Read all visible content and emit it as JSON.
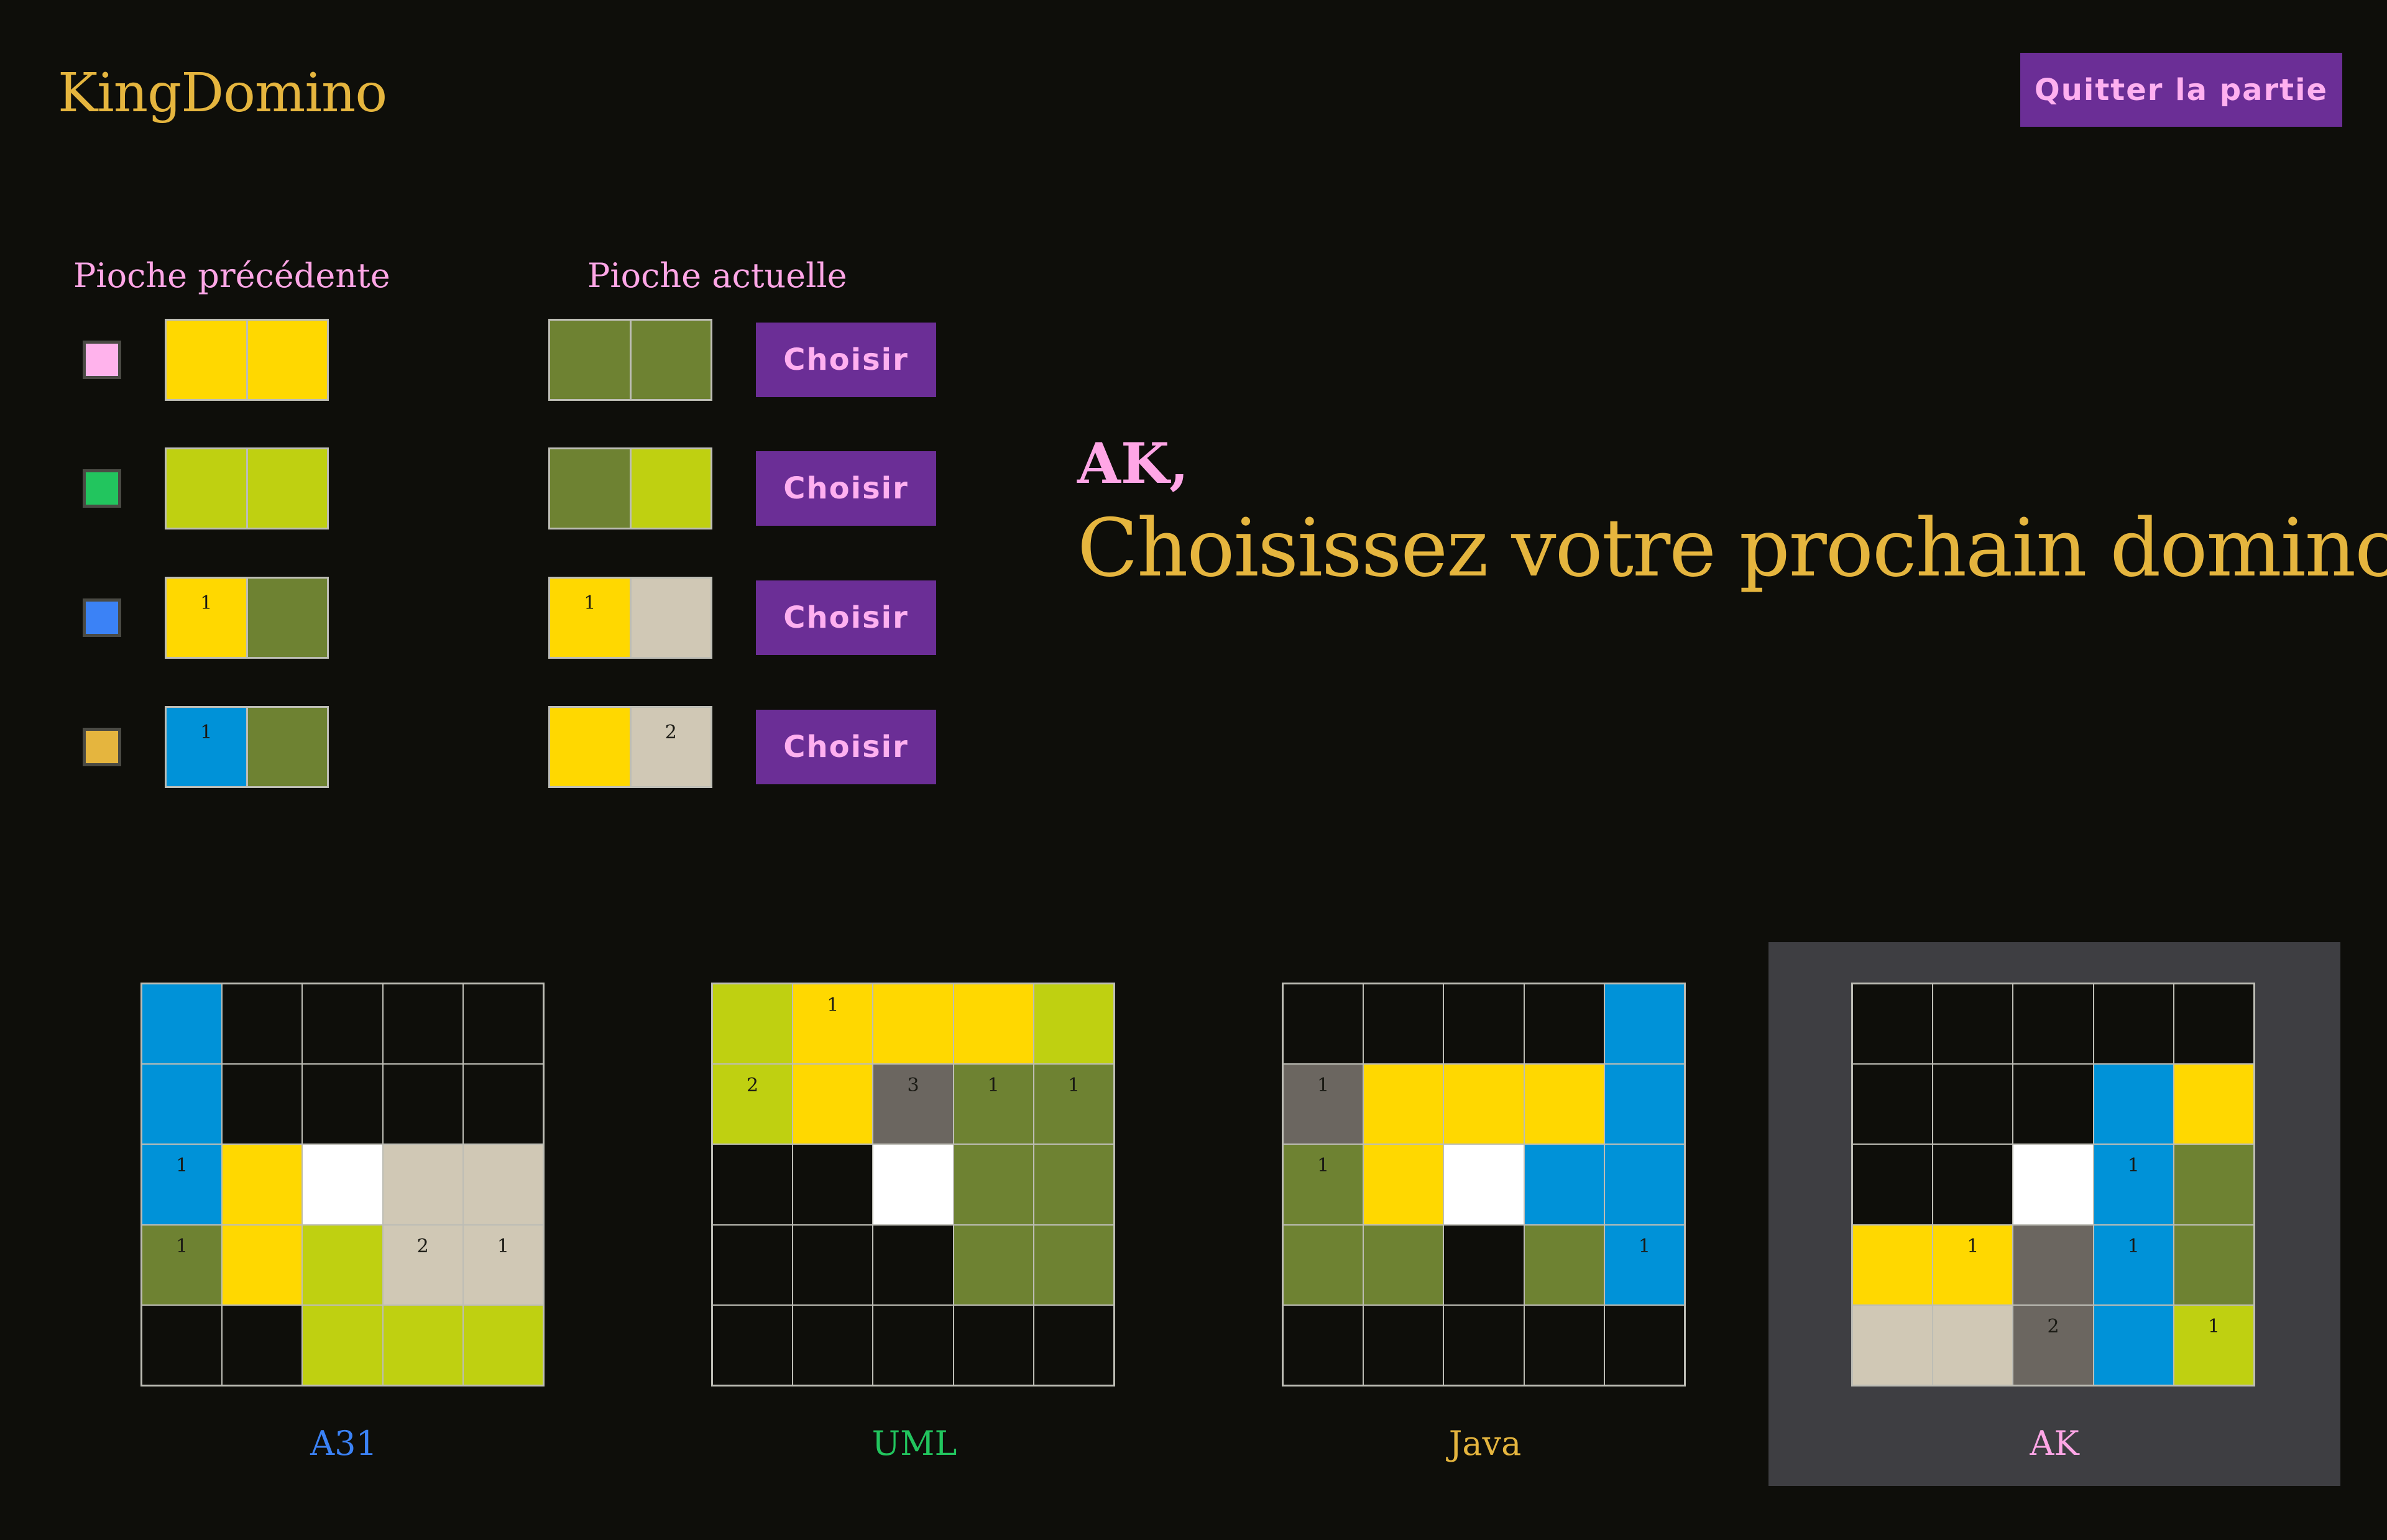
{
  "app": {
    "logo": "KingDomino",
    "quit_label": "Quitter la partie"
  },
  "columns": {
    "previous": "Pioche précédente",
    "current": "Pioche actuelle"
  },
  "choose_label": "Choisir",
  "colors": {
    "E": "#0e0e0a",
    "Y": "#ffd800",
    "L": "#bfd011",
    "G": "#6e8232",
    "B": "#0092d8",
    "T": "#d0c8b5",
    "W": "#ffffff",
    "D": "#6b6660",
    "accent_purple": "#6b2e96",
    "title_gold": "#e5b53e",
    "pink": "#ffa6e6"
  },
  "previous_pick": [
    {
      "player_color": "#ffb3ec",
      "cells": [
        {
          "t": "Y",
          "c": ""
        },
        {
          "t": "Y",
          "c": ""
        }
      ]
    },
    {
      "player_color": "#22c55e",
      "cells": [
        {
          "t": "L",
          "c": ""
        },
        {
          "t": "L",
          "c": ""
        }
      ]
    },
    {
      "player_color": "#3b82f6",
      "cells": [
        {
          "t": "Y",
          "c": "1"
        },
        {
          "t": "G",
          "c": ""
        }
      ]
    },
    {
      "player_color": "#e5b53e",
      "cells": [
        {
          "t": "B",
          "c": "1"
        },
        {
          "t": "G",
          "c": ""
        }
      ]
    }
  ],
  "current_pick": [
    {
      "cells": [
        {
          "t": "G",
          "c": ""
        },
        {
          "t": "G",
          "c": ""
        }
      ]
    },
    {
      "cells": [
        {
          "t": "G",
          "c": ""
        },
        {
          "t": "L",
          "c": ""
        }
      ]
    },
    {
      "cells": [
        {
          "t": "Y",
          "c": "1"
        },
        {
          "t": "T",
          "c": ""
        }
      ]
    },
    {
      "cells": [
        {
          "t": "Y",
          "c": ""
        },
        {
          "t": "T",
          "c": "2"
        }
      ]
    }
  ],
  "turn": {
    "player": "AK,",
    "message": "Choisissez votre prochain domino"
  },
  "boards": [
    {
      "name": "A31",
      "name_color": "#3b82f6",
      "active": false,
      "grid": [
        [
          "B",
          "E",
          "E",
          "E",
          "E"
        ],
        [
          "B",
          "E",
          "E",
          "E",
          "E"
        ],
        [
          "B1",
          "Y",
          "W",
          "T",
          "T"
        ],
        [
          "G1",
          "Y",
          "L",
          "T2",
          "T1"
        ],
        [
          "E",
          "E",
          "L",
          "L",
          "L"
        ]
      ]
    },
    {
      "name": "UML",
      "name_color": "#22c55e",
      "active": false,
      "grid": [
        [
          "L",
          "Y1",
          "Y",
          "Y",
          "L"
        ],
        [
          "L2",
          "Y",
          "D3",
          "G1",
          "G1"
        ],
        [
          "E",
          "E",
          "W",
          "G",
          "G"
        ],
        [
          "E",
          "E",
          "E",
          "G",
          "G"
        ],
        [
          "E",
          "E",
          "E",
          "E",
          "E"
        ]
      ]
    },
    {
      "name": "Java",
      "name_color": "#e5b53e",
      "active": false,
      "grid": [
        [
          "E",
          "E",
          "E",
          "E",
          "B"
        ],
        [
          "D1",
          "Y",
          "Y",
          "Y",
          "B"
        ],
        [
          "G1",
          "Y",
          "W",
          "B",
          "B"
        ],
        [
          "G",
          "G",
          "E",
          "G",
          "B1"
        ],
        [
          "E",
          "E",
          "E",
          "E",
          "E"
        ]
      ]
    },
    {
      "name": "AK",
      "name_color": "#ffa6e6",
      "active": true,
      "grid": [
        [
          "E",
          "E",
          "E",
          "E",
          "E"
        ],
        [
          "E",
          "E",
          "E",
          "B",
          "Y"
        ],
        [
          "E",
          "E",
          "W",
          "B1",
          "G"
        ],
        [
          "Y",
          "Y1",
          "D",
          "B1",
          "G"
        ],
        [
          "T",
          "T",
          "D2",
          "B",
          "L1"
        ]
      ]
    }
  ]
}
